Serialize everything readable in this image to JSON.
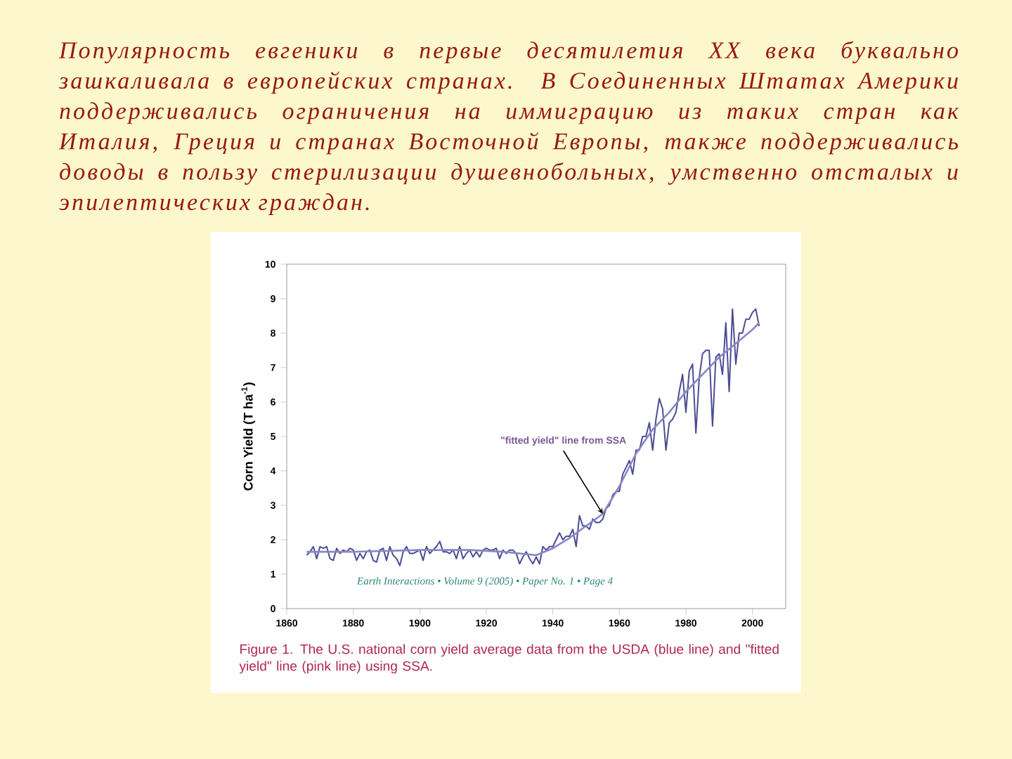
{
  "chart_data": {
    "type": "line",
    "title": "Популярность евгеники в первые десятилетия XX века буквально зашкаливала в европейских странах. В Соединенных Штатах Америки поддерживались ограничения на иммиграцию из таких стран как Италия, Греция и странах Восточной Европы, также поддерживались доводы в пользу стерилизации душевнобольных, умственно отсталых и эпилептических граждан.",
    "ylabel": "Corn Yield (T ha$^{-1}$)",
    "xlim": [
      1860,
      2010
    ],
    "xticks": [
      1860,
      1880,
      1900,
      1920,
      1940,
      1960,
      1980,
      2000
    ],
    "ylim": [
      0,
      10
    ],
    "yticks": [
      0,
      1,
      2,
      3,
      4,
      5,
      6,
      7,
      8,
      9,
      10
    ],
    "annotations": [
      {
        "text": "\"fitted yield\" line from SSA",
        "x": 1955,
        "y": 2.75
      },
      "Earth Interactions  •  Volume 9 (2005)  •  Paper No. 1  •  Page 4",
      "Figure 1. The U.S. national corn yield average data from the USDA (blue line) and \"fitted yield\" line (pink line) using SSA."
    ],
    "series": [
      {
        "color": "#4c4c94",
        "x": [
          1866,
          1867,
          1868,
          1869,
          1870,
          1871,
          1872,
          1873,
          1874,
          1875,
          1876,
          1877,
          1878,
          1879,
          1880,
          1881,
          1882,
          1883,
          1884,
          1885,
          1886,
          1887,
          1888,
          1889,
          1890,
          1891,
          1892,
          1893,
          1894,
          1895,
          1896,
          1897,
          1898,
          1899,
          1900,
          1901,
          1902,
          1903,
          1904,
          1905,
          1906,
          1907,
          1908,
          1909,
          1910,
          1911,
          1912,
          1913,
          1914,
          1915,
          1916,
          1917,
          1918,
          1919,
          1920,
          1921,
          1922,
          1923,
          1924,
          1925,
          1926,
          1927,
          1928,
          1929,
          1930,
          1931,
          1932,
          1933,
          1934,
          1935,
          1936,
          1937,
          1938,
          1939,
          1940,
          1941,
          1942,
          1943,
          1944,
          1945,
          1946,
          1947,
          1948,
          1949,
          1950,
          1951,
          1952,
          1953,
          1954,
          1955,
          1956,
          1957,
          1958,
          1959,
          1960,
          1961,
          1962,
          1963,
          1964,
          1965,
          1966,
          1967,
          1968,
          1969,
          1970,
          1971,
          1972,
          1973,
          1974,
          1975,
          1976,
          1977,
          1978,
          1979,
          1980,
          1981,
          1982,
          1983,
          1984,
          1985,
          1986,
          1987,
          1988,
          1989,
          1990,
          1991,
          1992,
          1993,
          1994,
          1995,
          1996,
          1997,
          1998,
          1999,
          2000,
          2001,
          2002
        ],
        "values": [
          1.55,
          1.65,
          1.8,
          1.45,
          1.8,
          1.75,
          1.8,
          1.45,
          1.4,
          1.75,
          1.6,
          1.7,
          1.65,
          1.75,
          1.7,
          1.4,
          1.6,
          1.45,
          1.65,
          1.7,
          1.4,
          1.35,
          1.7,
          1.75,
          1.4,
          1.8,
          1.55,
          1.45,
          1.25,
          1.65,
          1.8,
          1.6,
          1.6,
          1.65,
          1.7,
          1.4,
          1.8,
          1.6,
          1.7,
          1.8,
          1.95,
          1.65,
          1.65,
          1.6,
          1.7,
          1.45,
          1.8,
          1.45,
          1.6,
          1.7,
          1.5,
          1.65,
          1.5,
          1.7,
          1.75,
          1.7,
          1.7,
          1.75,
          1.45,
          1.7,
          1.6,
          1.7,
          1.7,
          1.6,
          1.3,
          1.5,
          1.65,
          1.45,
          1.3,
          1.5,
          1.3,
          1.8,
          1.7,
          1.8,
          1.8,
          2.0,
          2.2,
          2.0,
          2.1,
          2.1,
          2.3,
          1.8,
          2.7,
          2.4,
          2.4,
          2.3,
          2.6,
          2.5,
          2.5,
          2.6,
          2.9,
          3.0,
          3.3,
          3.4,
          3.4,
          3.9,
          4.1,
          4.3,
          3.9,
          4.6,
          4.6,
          5.0,
          5.0,
          5.4,
          4.6,
          5.5,
          6.1,
          5.8,
          4.6,
          5.4,
          5.5,
          5.7,
          6.3,
          6.8,
          5.7,
          6.9,
          7.1,
          5.1,
          6.7,
          7.4,
          7.5,
          7.5,
          5.3,
          7.3,
          7.4,
          6.8,
          8.3,
          6.3,
          8.7,
          7.1,
          8.0,
          8.0,
          8.4,
          8.4,
          8.6,
          8.7,
          8.2
        ]
      },
      {
        "color": "#8a86c4",
        "x": [
          1866,
          1880,
          1900,
          1915,
          1925,
          1935,
          1940,
          1945,
          1950,
          1955,
          1960,
          1965,
          1970,
          1975,
          1980,
          1985,
          1990,
          1995,
          2000,
          2002
        ],
        "values": [
          1.65,
          1.65,
          1.7,
          1.7,
          1.65,
          1.55,
          1.75,
          2.05,
          2.4,
          2.75,
          3.55,
          4.5,
          5.2,
          5.7,
          6.3,
          6.8,
          7.3,
          7.7,
          8.1,
          8.3
        ]
      }
    ]
  }
}
